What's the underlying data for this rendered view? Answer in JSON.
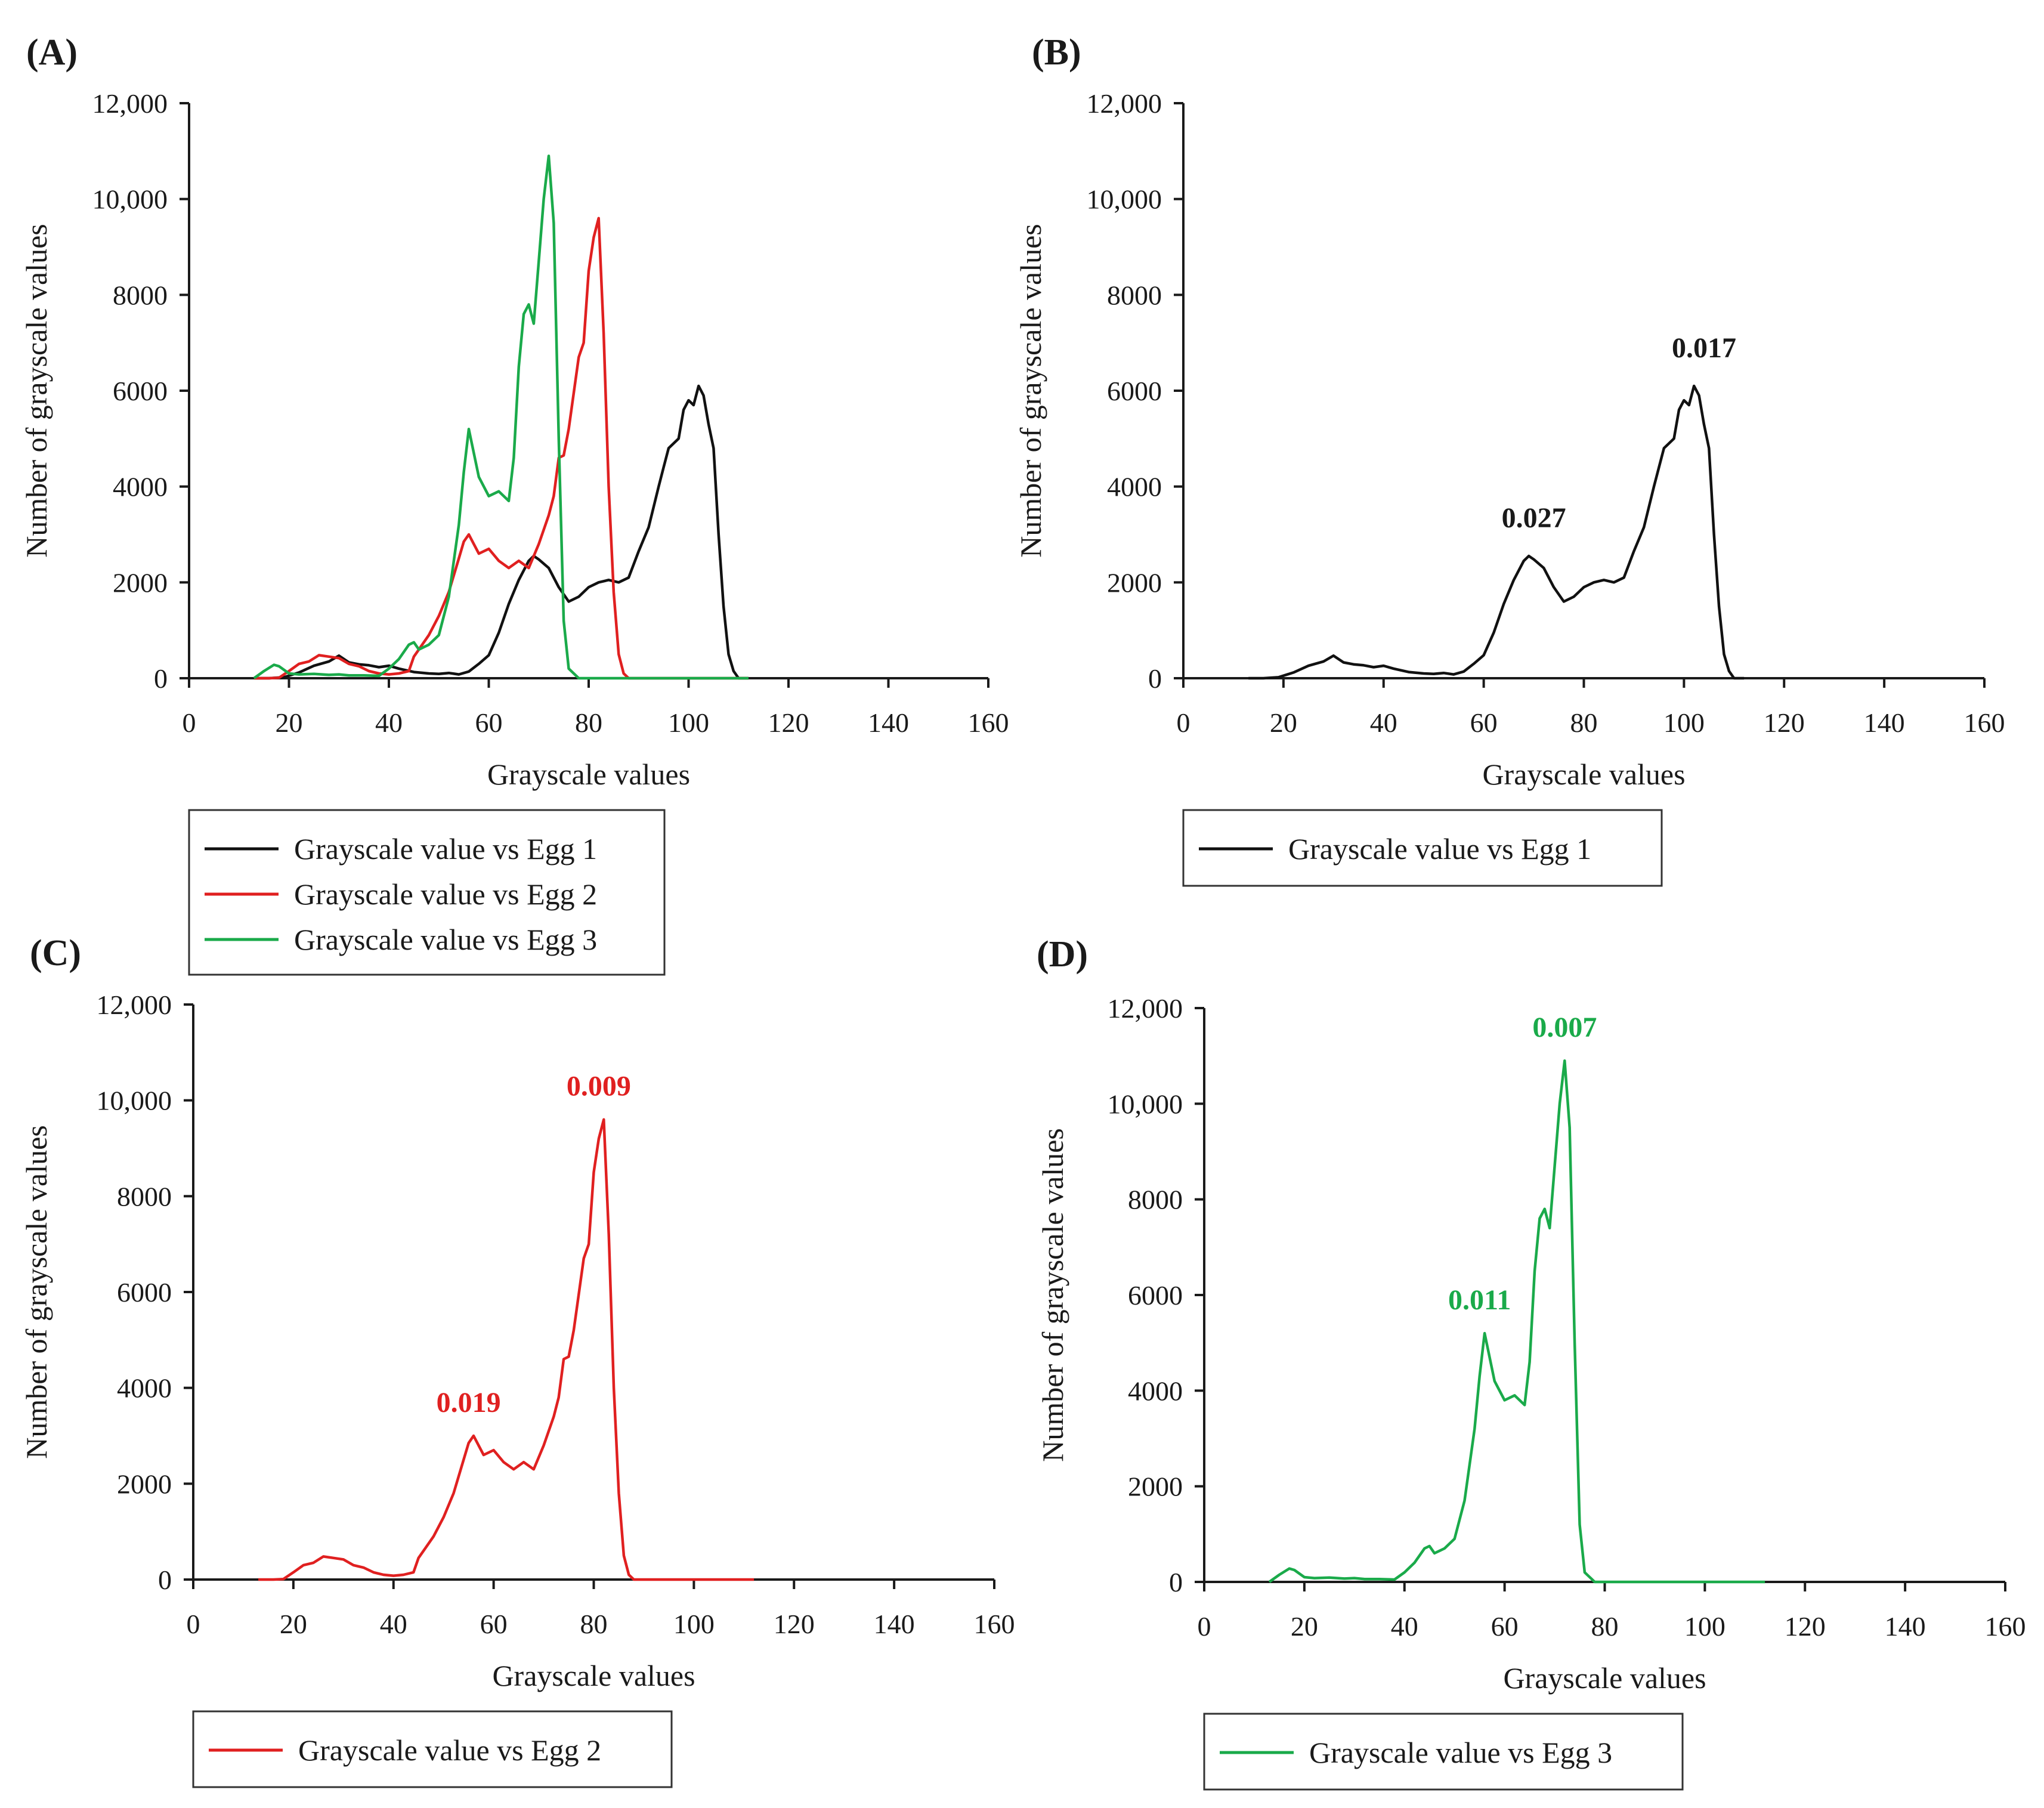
{
  "chart_data": [
    {
      "id": "A",
      "panel_label": "(A)",
      "type": "line",
      "xlabel": "Grayscale values",
      "ylabel": "Number of grayscale values",
      "xlim": [
        0,
        160
      ],
      "ylim": [
        0,
        12000
      ],
      "x_ticks": [
        "0",
        "20",
        "40",
        "60",
        "80",
        "100",
        "120",
        "140",
        "160"
      ],
      "y_ticks": [
        "0",
        "2000",
        "4000",
        "6000",
        "8000",
        "10,000",
        "12,000"
      ],
      "legend": "bottom",
      "series": [
        "egg1",
        "egg2",
        "egg3"
      ],
      "annotations": []
    },
    {
      "id": "B",
      "panel_label": "(B)",
      "type": "line",
      "xlabel": "Grayscale values",
      "ylabel": "Number of grayscale values",
      "xlim": [
        0,
        160
      ],
      "ylim": [
        0,
        12000
      ],
      "x_ticks": [
        "0",
        "20",
        "40",
        "60",
        "80",
        "100",
        "120",
        "140",
        "160"
      ],
      "y_ticks": [
        "0",
        "2000",
        "4000",
        "6000",
        "8000",
        "10,000",
        "12,000"
      ],
      "legend": "bottom",
      "series": [
        "egg1"
      ],
      "annotations": [
        {
          "text": "0.027",
          "x": 70,
          "y": 3150,
          "color": "#1a1a1a"
        },
        {
          "text": "0.017",
          "x": 104,
          "y": 6700,
          "color": "#1a1a1a"
        }
      ]
    },
    {
      "id": "C",
      "panel_label": "(C)",
      "type": "line",
      "xlabel": "Grayscale values",
      "ylabel": "Number of grayscale values",
      "xlim": [
        0,
        160
      ],
      "ylim": [
        0,
        12000
      ],
      "x_ticks": [
        "0",
        "20",
        "40",
        "60",
        "80",
        "100",
        "120",
        "140",
        "160"
      ],
      "y_ticks": [
        "0",
        "2000",
        "4000",
        "6000",
        "8000",
        "10,000",
        "12,000"
      ],
      "legend": "bottom",
      "series": [
        "egg2"
      ],
      "annotations": [
        {
          "text": "0.019",
          "x": 55,
          "y": 3500,
          "color": "#e02020"
        },
        {
          "text": "0.009",
          "x": 81,
          "y": 10100,
          "color": "#e02020"
        }
      ]
    },
    {
      "id": "D",
      "panel_label": "(D)",
      "type": "line",
      "xlabel": "Grayscale values",
      "ylabel": "Number of grayscale values",
      "xlim": [
        0,
        160
      ],
      "ylim": [
        0,
        12000
      ],
      "x_ticks": [
        "0",
        "20",
        "40",
        "60",
        "80",
        "100",
        "120",
        "140",
        "160"
      ],
      "y_ticks": [
        "0",
        "2000",
        "4000",
        "6000",
        "8000",
        "10,000",
        "12,000"
      ],
      "legend": "bottom",
      "series": [
        "egg3"
      ],
      "annotations": [
        {
          "text": "0.011",
          "x": 55,
          "y": 5700,
          "color": "#1aaa4a"
        },
        {
          "text": "0.007",
          "x": 72,
          "y": 11400,
          "color": "#1aaa4a"
        }
      ]
    }
  ],
  "series": {
    "egg1": {
      "name": "Grayscale value vs Egg 1",
      "color": "#111111",
      "x": [
        13,
        16,
        19,
        22,
        25,
        28,
        30,
        32,
        34,
        36,
        38,
        40,
        42,
        45,
        48,
        50,
        52,
        54,
        56,
        58,
        60,
        62,
        64,
        66,
        68,
        69,
        70,
        72,
        74,
        76,
        78,
        80,
        82,
        84,
        86,
        88,
        90,
        92,
        94,
        95,
        96,
        98,
        99,
        100,
        101,
        102,
        103,
        104,
        105,
        106,
        107,
        108,
        109,
        110,
        112
      ],
      "y": [
        0,
        0,
        20,
        120,
        260,
        350,
        470,
        330,
        290,
        270,
        230,
        260,
        200,
        130,
        100,
        90,
        110,
        80,
        140,
        300,
        480,
        950,
        1550,
        2050,
        2450,
        2550,
        2480,
        2300,
        1900,
        1600,
        1700,
        1900,
        2000,
        2050,
        2000,
        2100,
        2650,
        3150,
        4000,
        4400,
        4800,
        5000,
        5600,
        5800,
        5700,
        6100,
        5900,
        5300,
        4800,
        3000,
        1500,
        500,
        150,
        0,
        0
      ]
    },
    "egg2": {
      "name": "Grayscale value vs Egg 2",
      "color": "#e02020",
      "x": [
        13,
        16,
        18,
        20,
        22,
        24,
        26,
        28,
        30,
        32,
        34,
        36,
        38,
        40,
        42,
        44,
        45,
        46,
        48,
        50,
        52,
        54,
        55,
        56,
        57,
        58,
        60,
        62,
        64,
        66,
        68,
        70,
        72,
        73,
        74,
        75,
        76,
        78,
        79,
        80,
        81,
        82,
        83,
        84,
        85,
        86,
        87,
        88,
        90,
        100,
        112
      ],
      "y": [
        0,
        0,
        10,
        150,
        300,
        350,
        480,
        450,
        420,
        300,
        250,
        150,
        100,
        80,
        100,
        150,
        450,
        600,
        900,
        1300,
        1800,
        2500,
        2850,
        3000,
        2800,
        2600,
        2700,
        2450,
        2300,
        2450,
        2300,
        2800,
        3400,
        3800,
        4600,
        4650,
        5200,
        6700,
        7000,
        8500,
        9200,
        9600,
        7200,
        4000,
        1800,
        500,
        100,
        0,
        0,
        0,
        0
      ]
    },
    "egg3": {
      "name": "Grayscale value vs Egg 3",
      "color": "#1aaa4a",
      "x": [
        13,
        15,
        17,
        18,
        20,
        22,
        25,
        28,
        30,
        32,
        35,
        38,
        40,
        42,
        44,
        45,
        46,
        48,
        50,
        52,
        54,
        55,
        56,
        58,
        60,
        62,
        64,
        65,
        66,
        67,
        68,
        69,
        70,
        71,
        72,
        73,
        74,
        75,
        76,
        78,
        80,
        90,
        100,
        112
      ],
      "y": [
        0,
        150,
        280,
        250,
        100,
        80,
        90,
        70,
        80,
        60,
        60,
        50,
        200,
        400,
        700,
        750,
        600,
        700,
        900,
        1700,
        3200,
        4300,
        5200,
        4200,
        3800,
        3900,
        3700,
        4600,
        6500,
        7600,
        7800,
        7400,
        8700,
        10000,
        10900,
        9500,
        5000,
        1200,
        200,
        0,
        0,
        0,
        0,
        0
      ]
    }
  }
}
